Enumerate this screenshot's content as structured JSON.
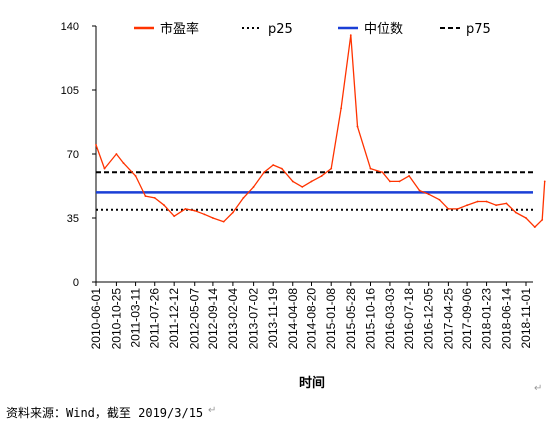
{
  "chart_data": {
    "type": "line",
    "xlabel": "时间",
    "ylabel": "",
    "ylim": [
      0,
      140
    ],
    "yticks": [
      0,
      35,
      70,
      105,
      140
    ],
    "grid": false,
    "legend_position": "top",
    "x_tick_labels": [
      "2010-06-01",
      "2010-10-25",
      "2011-03-11",
      "2011-07-26",
      "2011-12-12",
      "2012-05-07",
      "2012-09-14",
      "2013-02-04",
      "2013-07-02",
      "2013-11-19",
      "2014-04-08",
      "2014-08-20",
      "2015-01-08",
      "2015-05-28",
      "2015-10-16",
      "2016-03-03",
      "2016-07-18",
      "2016-12-05",
      "2017-04-25",
      "2017-09-06",
      "2018-01-23",
      "2018-06-14",
      "2018-11-01"
    ],
    "series": [
      {
        "name": "市盈率",
        "style": "solid-line",
        "color": "#ff3300",
        "x": [
          "2010-06-01",
          "2010-08-01",
          "2010-10-25",
          "2010-12-15",
          "2011-03-11",
          "2011-05-20",
          "2011-07-26",
          "2011-10-01",
          "2011-12-12",
          "2012-03-01",
          "2012-05-07",
          "2012-07-15",
          "2012-09-14",
          "2012-11-30",
          "2013-02-04",
          "2013-04-20",
          "2013-07-02",
          "2013-09-15",
          "2013-11-19",
          "2014-01-20",
          "2014-04-08",
          "2014-06-15",
          "2014-08-20",
          "2014-11-01",
          "2015-01-08",
          "2015-03-20",
          "2015-05-28",
          "2015-07-15",
          "2015-10-16",
          "2016-01-10",
          "2016-03-03",
          "2016-05-10",
          "2016-07-18",
          "2016-10-01",
          "2016-12-05",
          "2017-02-20",
          "2017-04-25",
          "2017-07-01",
          "2017-09-06",
          "2017-11-20",
          "2018-01-23",
          "2018-04-01",
          "2018-06-14",
          "2018-08-20",
          "2018-11-01",
          "2019-01-03",
          "2019-02-25",
          "2019-03-15"
        ],
        "values": [
          75,
          62,
          70,
          65,
          58,
          47,
          46,
          42,
          36,
          40,
          39,
          37,
          35,
          33,
          38,
          46,
          52,
          60,
          64,
          62,
          55,
          52,
          55,
          58,
          62,
          95,
          135,
          85,
          62,
          60,
          55,
          55,
          58,
          50,
          48,
          45,
          40,
          40,
          42,
          44,
          44,
          42,
          43,
          38,
          35,
          30,
          34,
          55
        ]
      },
      {
        "name": "p25",
        "style": "dotted-line",
        "color": "#000000",
        "value": 39.5
      },
      {
        "name": "中位数",
        "style": "solid-line",
        "color": "#1a3fd6",
        "value": 49
      },
      {
        "name": "p75",
        "style": "dashed-line",
        "color": "#000000",
        "value": 60
      }
    ]
  },
  "source_note": "资料来源：Wind，截至 2019/3/15"
}
